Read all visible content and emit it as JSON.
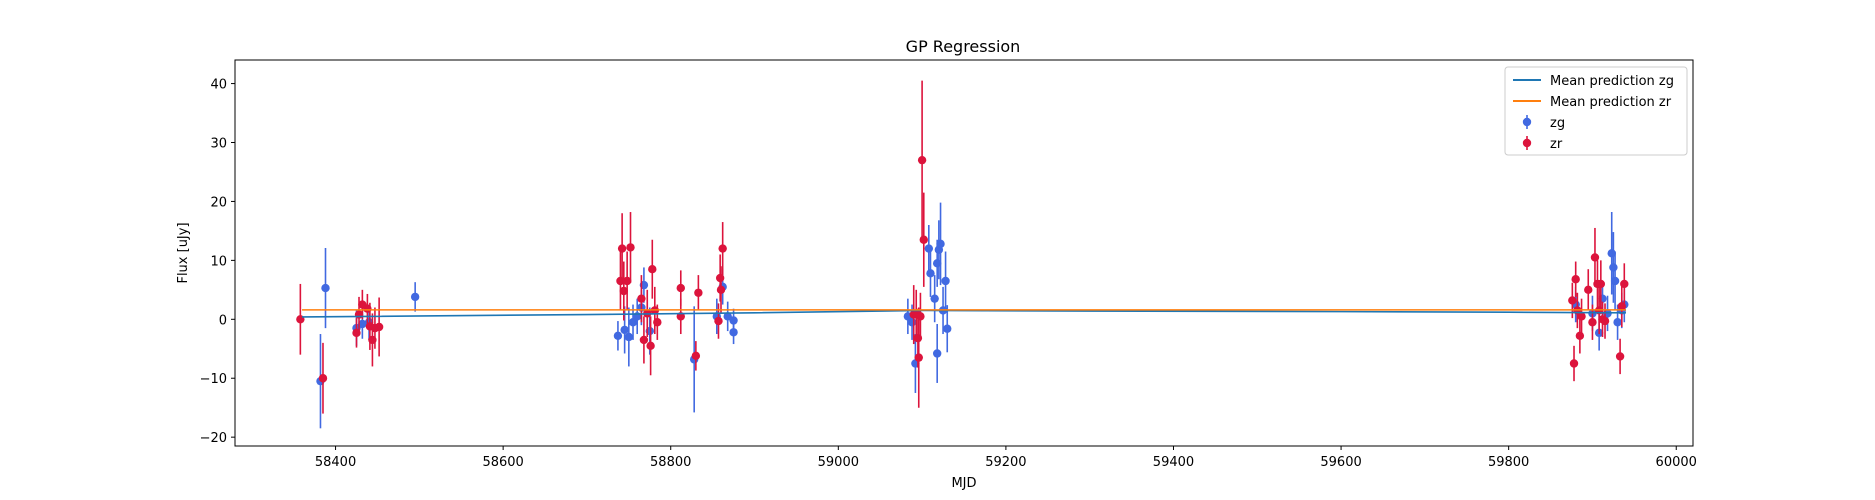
{
  "chart_data": {
    "type": "scatter",
    "title": "GP Regression",
    "xlabel": "MJD",
    "ylabel": "Flux [uJy]",
    "xlim": [
      58280,
      60020
    ],
    "ylim": [
      -21.5,
      44
    ],
    "xticks": [
      58400,
      58600,
      58800,
      59000,
      59200,
      59400,
      59600,
      59800,
      60000
    ],
    "yticks": [
      -20,
      -10,
      0,
      10,
      20,
      30,
      40
    ],
    "grid": false,
    "legend_position": "top-right",
    "colors": {
      "mean_zg": "#1f77b4",
      "mean_zr": "#ff7f0e",
      "zg": "#4169e1",
      "zr": "#dc143c"
    },
    "legend": [
      {
        "label": "Mean prediction zg",
        "kind": "line",
        "color": "#1f77b4"
      },
      {
        "label": "Mean prediction zr",
        "kind": "line",
        "color": "#ff7f0e"
      },
      {
        "label": "zg",
        "kind": "errorbar",
        "color": "#4169e1"
      },
      {
        "label": "zr",
        "kind": "errorbar",
        "color": "#dc143c"
      }
    ],
    "lines": [
      {
        "name": "Mean prediction zg",
        "color": "#1f77b4",
        "x": [
          58360,
          58700,
          58900,
          59100,
          59300,
          59600,
          59800,
          59940
        ],
        "y": [
          0.4,
          0.8,
          1.1,
          1.5,
          1.4,
          1.3,
          1.2,
          1.1
        ]
      },
      {
        "name": "Mean prediction zr",
        "color": "#ff7f0e",
        "x": [
          58360,
          58700,
          58900,
          59100,
          59300,
          59600,
          59800,
          59940
        ],
        "y": [
          1.6,
          1.6,
          1.6,
          1.6,
          1.6,
          1.6,
          1.6,
          1.6
        ]
      }
    ],
    "series": [
      {
        "name": "zg",
        "color": "#4169e1",
        "points": [
          {
            "x": 58382,
            "y": -10.5,
            "err": 8.0
          },
          {
            "x": 58388,
            "y": 5.3,
            "err": 6.8
          },
          {
            "x": 58425,
            "y": -1.5,
            "err": 3.0
          },
          {
            "x": 58432,
            "y": -0.8,
            "err": 2.5
          },
          {
            "x": 58440,
            "y": -0.5,
            "err": 3.0
          },
          {
            "x": 58495,
            "y": 3.8,
            "err": 2.5
          },
          {
            "x": 58737,
            "y": -2.8,
            "err": 2.5
          },
          {
            "x": 58745,
            "y": -1.8,
            "err": 4.0
          },
          {
            "x": 58750,
            "y": -3.0,
            "err": 5.0
          },
          {
            "x": 58755,
            "y": -0.5,
            "err": 3.0
          },
          {
            "x": 58760,
            "y": 0.5,
            "err": 3.0
          },
          {
            "x": 58765,
            "y": 2.0,
            "err": 3.0
          },
          {
            "x": 58768,
            "y": 5.8,
            "err": 3.0
          },
          {
            "x": 58775,
            "y": -2.0,
            "err": 4.0
          },
          {
            "x": 58828,
            "y": -6.8,
            "err": 9.0
          },
          {
            "x": 58855,
            "y": 0.5,
            "err": 3.0
          },
          {
            "x": 58862,
            "y": 5.5,
            "err": 3.0
          },
          {
            "x": 58868,
            "y": 0.5,
            "err": 2.5
          },
          {
            "x": 58875,
            "y": -0.2,
            "err": 2.0
          },
          {
            "x": 58875,
            "y": -2.2,
            "err": 2.0
          },
          {
            "x": 59083,
            "y": 0.5,
            "err": 3.0
          },
          {
            "x": 59088,
            "y": -0.5,
            "err": 3.0
          },
          {
            "x": 59092,
            "y": -7.5,
            "err": 5.0
          },
          {
            "x": 59108,
            "y": 12.0,
            "err": 4.0
          },
          {
            "x": 59110,
            "y": 7.8,
            "err": 4.0
          },
          {
            "x": 59115,
            "y": 3.5,
            "err": 4.0
          },
          {
            "x": 59118,
            "y": 9.5,
            "err": 4.0
          },
          {
            "x": 59120,
            "y": 11.8,
            "err": 5.0
          },
          {
            "x": 59122,
            "y": 12.8,
            "err": 7.0
          },
          {
            "x": 59125,
            "y": 1.5,
            "err": 4.0
          },
          {
            "x": 59118,
            "y": -5.8,
            "err": 5.0
          },
          {
            "x": 59128,
            "y": 6.5,
            "err": 5.0
          },
          {
            "x": 59130,
            "y": -1.6,
            "err": 4.0
          },
          {
            "x": 59880,
            "y": 2.5,
            "err": 3.0
          },
          {
            "x": 59900,
            "y": 1.0,
            "err": 3.0
          },
          {
            "x": 59908,
            "y": -2.3,
            "err": 3.0
          },
          {
            "x": 59912,
            "y": 3.5,
            "err": 3.0
          },
          {
            "x": 59918,
            "y": 1.0,
            "err": 3.0
          },
          {
            "x": 59923,
            "y": 11.2,
            "err": 7.0
          },
          {
            "x": 59925,
            "y": 8.8,
            "err": 6.0
          },
          {
            "x": 59927,
            "y": 6.5,
            "err": 5.0
          },
          {
            "x": 59930,
            "y": -0.5,
            "err": 3.0
          },
          {
            "x": 59935,
            "y": 1.5,
            "err": 3.0
          },
          {
            "x": 59938,
            "y": 2.5,
            "err": 3.0
          }
        ]
      },
      {
        "name": "zr",
        "color": "#dc143c",
        "points": [
          {
            "x": 58358,
            "y": 0.0,
            "err": 6.0
          },
          {
            "x": 58385,
            "y": -10.0,
            "err": 6.0
          },
          {
            "x": 58425,
            "y": -2.3,
            "err": 2.5
          },
          {
            "x": 58428,
            "y": 0.8,
            "err": 3.0
          },
          {
            "x": 58432,
            "y": 2.5,
            "err": 2.5
          },
          {
            "x": 58438,
            "y": 1.8,
            "err": 2.5
          },
          {
            "x": 58441,
            "y": -1.2,
            "err": 4.0
          },
          {
            "x": 58444,
            "y": -3.5,
            "err": 4.5
          },
          {
            "x": 58447,
            "y": -1.5,
            "err": 3.5
          },
          {
            "x": 58452,
            "y": -1.3,
            "err": 5.0
          },
          {
            "x": 58740,
            "y": 6.5,
            "err": 5.0
          },
          {
            "x": 58742,
            "y": 12.0,
            "err": 6.0
          },
          {
            "x": 58744,
            "y": 4.8,
            "err": 5.0
          },
          {
            "x": 58748,
            "y": 6.5,
            "err": 5.0
          },
          {
            "x": 58752,
            "y": 12.2,
            "err": 6.0
          },
          {
            "x": 58765,
            "y": 3.5,
            "err": 4.0
          },
          {
            "x": 58768,
            "y": -3.5,
            "err": 4.0
          },
          {
            "x": 58772,
            "y": 1.0,
            "err": 4.0
          },
          {
            "x": 58776,
            "y": -4.5,
            "err": 5.0
          },
          {
            "x": 58778,
            "y": 8.5,
            "err": 5.0
          },
          {
            "x": 58781,
            "y": 1.5,
            "err": 4.0
          },
          {
            "x": 58784,
            "y": -0.5,
            "err": 3.0
          },
          {
            "x": 58812,
            "y": 5.3,
            "err": 3.0
          },
          {
            "x": 58812,
            "y": 0.5,
            "err": 3.0
          },
          {
            "x": 58830,
            "y": -6.2,
            "err": 2.5
          },
          {
            "x": 58833,
            "y": 4.5,
            "err": 3.0
          },
          {
            "x": 58857,
            "y": -0.3,
            "err": 3.0
          },
          {
            "x": 58859,
            "y": 7.0,
            "err": 4.0
          },
          {
            "x": 58860,
            "y": 5.0,
            "err": 4.0
          },
          {
            "x": 58862,
            "y": 12.0,
            "err": 4.5
          },
          {
            "x": 59090,
            "y": 0.8,
            "err": 5.0
          },
          {
            "x": 59093,
            "y": 1.0,
            "err": 4.0
          },
          {
            "x": 59095,
            "y": -3.2,
            "err": 5.0
          },
          {
            "x": 59096,
            "y": -6.5,
            "err": 8.5
          },
          {
            "x": 59098,
            "y": 0.5,
            "err": 4.0
          },
          {
            "x": 59100,
            "y": 27.0,
            "err": 13.5
          },
          {
            "x": 59102,
            "y": 13.5,
            "err": 8.0
          },
          {
            "x": 59876,
            "y": 3.2,
            "err": 3.0
          },
          {
            "x": 59878,
            "y": -7.5,
            "err": 3.0
          },
          {
            "x": 59880,
            "y": 6.8,
            "err": 3.0
          },
          {
            "x": 59882,
            "y": 1.5,
            "err": 3.0
          },
          {
            "x": 59885,
            "y": -2.8,
            "err": 3.0
          },
          {
            "x": 59887,
            "y": 0.5,
            "err": 3.0
          },
          {
            "x": 59895,
            "y": 5.0,
            "err": 3.5
          },
          {
            "x": 59900,
            "y": -0.5,
            "err": 3.0
          },
          {
            "x": 59903,
            "y": 10.5,
            "err": 5.0
          },
          {
            "x": 59906,
            "y": 6.0,
            "err": 4.0
          },
          {
            "x": 59908,
            "y": 1.5,
            "err": 4.0
          },
          {
            "x": 59910,
            "y": 6.0,
            "err": 4.0
          },
          {
            "x": 59912,
            "y": 0.0,
            "err": 3.0
          },
          {
            "x": 59915,
            "y": -0.3,
            "err": 3.0
          },
          {
            "x": 59933,
            "y": -6.3,
            "err": 3.0
          },
          {
            "x": 59935,
            "y": 2.2,
            "err": 3.5
          },
          {
            "x": 59938,
            "y": 6.0,
            "err": 3.5
          }
        ]
      }
    ]
  }
}
